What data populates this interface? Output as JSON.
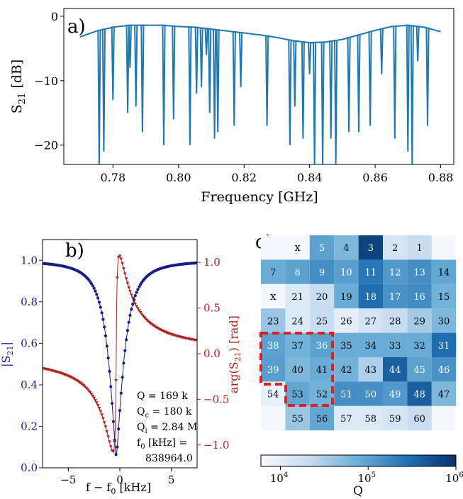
{
  "chart_data": [
    {
      "type": "line",
      "panel_label": "a)",
      "xlabel": "Frequency [GHz]",
      "ylabel": "S21 [dB]",
      "xlim": [
        0.765,
        0.884
      ],
      "ylim": [
        -23,
        1.2
      ],
      "xticks": [
        0.78,
        0.8,
        0.82,
        0.84,
        0.86,
        0.88
      ],
      "xtick_labels": [
        "0.78",
        "0.80",
        "0.82",
        "0.84",
        "0.86",
        "0.88"
      ],
      "yticks": [
        0,
        -10,
        -20
      ],
      "ytick_labels": [
        "0",
        "−10",
        "−20"
      ],
      "color": "#1f77b4",
      "baseline": {
        "x": [
          0.77,
          0.775,
          0.78,
          0.785,
          0.79,
          0.795,
          0.8,
          0.805,
          0.81,
          0.815,
          0.82,
          0.825,
          0.83,
          0.835,
          0.84,
          0.845,
          0.85,
          0.855,
          0.86,
          0.865,
          0.87,
          0.875,
          0.88
        ],
        "y": [
          -3.2,
          -2.3,
          -1.7,
          -1.4,
          -1.4,
          -1.4,
          -1.6,
          -1.7,
          -2.0,
          -2.3,
          -2.6,
          -2.9,
          -3.3,
          -3.8,
          -4.1,
          -4.0,
          -3.6,
          -2.9,
          -2.2,
          -1.6,
          -1.4,
          -1.7,
          -2.4
        ]
      },
      "resonance_dips": [
        {
          "f": 0.7758,
          "depth": -23
        },
        {
          "f": 0.7772,
          "depth": -21
        },
        {
          "f": 0.78,
          "depth": -13
        },
        {
          "f": 0.7845,
          "depth": -15
        },
        {
          "f": 0.7852,
          "depth": -8
        },
        {
          "f": 0.787,
          "depth": -14
        },
        {
          "f": 0.789,
          "depth": -18
        },
        {
          "f": 0.7955,
          "depth": -20
        },
        {
          "f": 0.7985,
          "depth": -16
        },
        {
          "f": 0.8035,
          "depth": -20
        },
        {
          "f": 0.8055,
          "depth": -12
        },
        {
          "f": 0.807,
          "depth": -11
        },
        {
          "f": 0.8085,
          "depth": -6
        },
        {
          "f": 0.8095,
          "depth": -15
        },
        {
          "f": 0.811,
          "depth": -19
        },
        {
          "f": 0.812,
          "depth": -18
        },
        {
          "f": 0.817,
          "depth": -17
        },
        {
          "f": 0.819,
          "depth": -11
        },
        {
          "f": 0.827,
          "depth": -17
        },
        {
          "f": 0.834,
          "depth": -20
        },
        {
          "f": 0.8355,
          "depth": -14
        },
        {
          "f": 0.838,
          "depth": -19
        },
        {
          "f": 0.84,
          "depth": -9
        },
        {
          "f": 0.8415,
          "depth": -23
        },
        {
          "f": 0.844,
          "depth": -23
        },
        {
          "f": 0.8465,
          "depth": -19
        },
        {
          "f": 0.848,
          "depth": -23
        },
        {
          "f": 0.852,
          "depth": -18
        },
        {
          "f": 0.855,
          "depth": -18
        },
        {
          "f": 0.8585,
          "depth": -17
        },
        {
          "f": 0.862,
          "depth": -9
        },
        {
          "f": 0.866,
          "depth": -19
        },
        {
          "f": 0.87,
          "depth": -21
        },
        {
          "f": 0.8713,
          "depth": -23
        },
        {
          "f": 0.873,
          "depth": -7
        },
        {
          "f": 0.876,
          "depth": -17
        }
      ]
    },
    {
      "type": "line",
      "panel_label": "b)",
      "xlabel": "f − f0 [kHz]",
      "ylabel_left": "|S21|",
      "ylabel_right": "arg(S21) [rad]",
      "xlim": [
        -7.5,
        7.5
      ],
      "ylim_left": [
        0.0,
        1.1
      ],
      "ylim_right": [
        -1.25,
        1.25
      ],
      "xticks": [
        -5,
        0,
        5
      ],
      "xtick_labels": [
        "−5",
        "0",
        "5"
      ],
      "yticks_left": [
        0.0,
        0.2,
        0.4,
        0.6,
        0.8,
        1.0
      ],
      "ytick_labels_left": [
        "0.0",
        "0.2",
        "0.4",
        "0.6",
        "0.8",
        "1.0"
      ],
      "yticks_right": [
        1.0,
        0.5,
        0.0,
        -0.5,
        -1.0
      ],
      "ytick_labels_right": [
        "1.0",
        "0.5",
        "0.0",
        "−0.5",
        "−1.0"
      ],
      "colors": {
        "magnitude": "#1a1a8c",
        "phase": "#b22222"
      },
      "model": {
        "Q": 169000,
        "Qc": 180000,
        "f0_offset_khz": -0.35,
        "linewidth_khz": 2.5
      },
      "series": [
        {
          "axis": "left",
          "x": [
            -7.5,
            -6,
            -5,
            -4,
            -3,
            -2,
            -1.5,
            -1,
            -0.5,
            -0.35,
            0,
            0.5,
            1,
            2,
            3,
            4,
            5,
            6,
            7.5
          ],
          "y": [
            0.95,
            0.93,
            0.9,
            0.85,
            0.77,
            0.62,
            0.51,
            0.36,
            0.15,
            0.06,
            0.14,
            0.33,
            0.49,
            0.68,
            0.79,
            0.86,
            0.9,
            0.92,
            0.95
          ]
        },
        {
          "axis": "right",
          "x": [
            -7.5,
            -6,
            -5,
            -4,
            -3,
            -2,
            -1,
            -0.5,
            -0.35,
            0,
            0.3,
            0.5,
            1,
            2,
            3,
            4,
            5,
            6,
            7.5
          ],
          "y": [
            -0.43,
            -0.52,
            -0.6,
            -0.7,
            -0.82,
            -0.98,
            -1.15,
            -1.14,
            -0.85,
            0.0,
            0.95,
            1.13,
            1.05,
            0.82,
            0.62,
            0.5,
            0.42,
            0.35,
            0.28
          ]
        }
      ],
      "annotation": [
        "Q = 169 k",
        "Qc = 180 k",
        "Qi = 2.84 M",
        "f0 [kHz] =",
        "838964.0"
      ]
    },
    {
      "type": "heatmap",
      "panel_label": "c)",
      "colorbar_label": "Q",
      "colorbar_scale": "log",
      "colorbar_range": [
        6000,
        1000000
      ],
      "colorbar_ticks": [
        10000,
        100000,
        1000000
      ],
      "colorbar_tick_labels": [
        "10^4",
        "10^5",
        "10^6"
      ],
      "rows": 9,
      "cols": 8,
      "highlighted_cells": [
        "38",
        "37",
        "36",
        "39",
        "40",
        "41",
        "53",
        "52"
      ],
      "cells": [
        {
          "r": 0,
          "c": 1,
          "label": "x",
          "q": null
        },
        {
          "r": 0,
          "c": 2,
          "label": "5",
          "q": 100000
        },
        {
          "r": 0,
          "c": 3,
          "label": "4",
          "q": 60000
        },
        {
          "r": 0,
          "c": 4,
          "label": "3",
          "q": 700000
        },
        {
          "r": 0,
          "c": 5,
          "label": "2",
          "q": 15000
        },
        {
          "r": 0,
          "c": 6,
          "label": "1",
          "q": 20000
        },
        {
          "r": 1,
          "c": 0,
          "label": "7",
          "q": 80000
        },
        {
          "r": 1,
          "c": 1,
          "label": "8",
          "q": 100000
        },
        {
          "r": 1,
          "c": 2,
          "label": "9",
          "q": 150000
        },
        {
          "r": 1,
          "c": 3,
          "label": "10",
          "q": 110000
        },
        {
          "r": 1,
          "c": 4,
          "label": "11",
          "q": 250000
        },
        {
          "r": 1,
          "c": 5,
          "label": "12",
          "q": 120000
        },
        {
          "r": 1,
          "c": 6,
          "label": "13",
          "q": 150000
        },
        {
          "r": 1,
          "c": 7,
          "label": "14",
          "q": 90000
        },
        {
          "r": 2,
          "c": 0,
          "label": "x",
          "q": null
        },
        {
          "r": 2,
          "c": 1,
          "label": "21",
          "q": 12000
        },
        {
          "r": 2,
          "c": 2,
          "label": "20",
          "q": 20000
        },
        {
          "r": 2,
          "c": 3,
          "label": "19",
          "q": 80000
        },
        {
          "r": 2,
          "c": 4,
          "label": "18",
          "q": 300000
        },
        {
          "r": 2,
          "c": 5,
          "label": "17",
          "q": 140000
        },
        {
          "r": 2,
          "c": 6,
          "label": "16",
          "q": 160000
        },
        {
          "r": 2,
          "c": 7,
          "label": "15",
          "q": 70000
        },
        {
          "r": 3,
          "c": 0,
          "label": "23",
          "q": 40000
        },
        {
          "r": 3,
          "c": 1,
          "label": "24",
          "q": 12000
        },
        {
          "r": 3,
          "c": 2,
          "label": "25",
          "q": 20000
        },
        {
          "r": 3,
          "c": 3,
          "label": "26",
          "q": 10000
        },
        {
          "r": 3,
          "c": 4,
          "label": "27",
          "q": 15000
        },
        {
          "r": 3,
          "c": 5,
          "label": "28",
          "q": 20000
        },
        {
          "r": 3,
          "c": 6,
          "label": "29",
          "q": 35000
        },
        {
          "r": 3,
          "c": 7,
          "label": "30",
          "q": 60000
        },
        {
          "r": 4,
          "c": 0,
          "label": "38",
          "q": 100000
        },
        {
          "r": 4,
          "c": 1,
          "label": "37",
          "q": 70000
        },
        {
          "r": 4,
          "c": 2,
          "label": "36",
          "q": 100000
        },
        {
          "r": 4,
          "c": 3,
          "label": "35",
          "q": 80000
        },
        {
          "r": 4,
          "c": 4,
          "label": "34",
          "q": 80000
        },
        {
          "r": 4,
          "c": 5,
          "label": "33",
          "q": 80000
        },
        {
          "r": 4,
          "c": 6,
          "label": "32",
          "q": 80000
        },
        {
          "r": 4,
          "c": 7,
          "label": "31",
          "q": 300000
        },
        {
          "r": 5,
          "c": 0,
          "label": "39",
          "q": 110000
        },
        {
          "r": 5,
          "c": 1,
          "label": "40",
          "q": 60000
        },
        {
          "r": 5,
          "c": 2,
          "label": "41",
          "q": 80000
        },
        {
          "r": 5,
          "c": 3,
          "label": "42",
          "q": 70000
        },
        {
          "r": 5,
          "c": 4,
          "label": "43",
          "q": 30000
        },
        {
          "r": 5,
          "c": 5,
          "label": "44",
          "q": 400000
        },
        {
          "r": 5,
          "c": 6,
          "label": "45",
          "q": 100000
        },
        {
          "r": 5,
          "c": 7,
          "label": "46",
          "q": 140000
        },
        {
          "r": 6,
          "c": 0,
          "label": "54",
          "q": 9000
        },
        {
          "r": 6,
          "c": 2,
          "label": "53",
          "q": 90000
        },
        {
          "r": 6,
          "c": 3,
          "label": "52",
          "q": 70000
        },
        {
          "r": 6,
          "c": 4,
          "label": "51",
          "q": 150000
        },
        {
          "r": 6,
          "c": 5,
          "label": "50",
          "q": 150000
        },
        {
          "r": 6,
          "c": 6,
          "label": "49",
          "q": 120000
        },
        {
          "r": 6,
          "c": 7,
          "label": "48",
          "q": 400000
        },
        {
          "r": 6,
          "c": 8,
          "label": "47",
          "q": 60000
        },
        {
          "r": 7,
          "c": 1,
          "label": "55",
          "q": 40000
        },
        {
          "r": 7,
          "c": 2,
          "label": "56",
          "q": 90000
        },
        {
          "r": 7,
          "c": 3,
          "label": "57",
          "q": 12000
        },
        {
          "r": 7,
          "c": 4,
          "label": "58",
          "q": 12000
        },
        {
          "r": 7,
          "c": 5,
          "label": "59",
          "q": 15000
        },
        {
          "r": 7,
          "c": 6,
          "label": "60",
          "q": 20000
        }
      ]
    }
  ]
}
